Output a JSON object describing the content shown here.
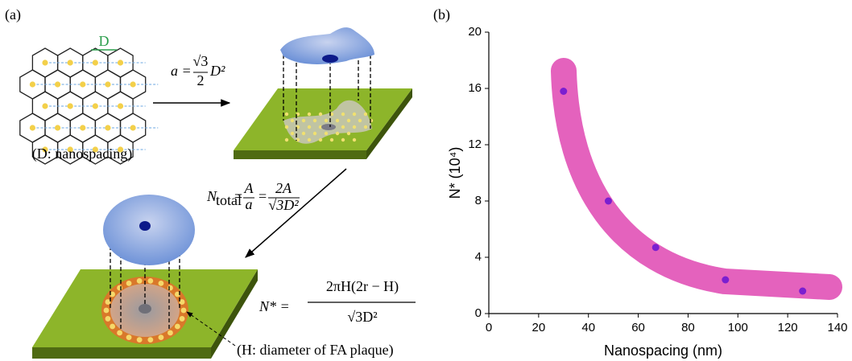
{
  "panel_a": {
    "label": "(a)",
    "spacing_label": "D",
    "spacing_caption": "(D: nanospacing)",
    "formula_area": {
      "lhs": "a =",
      "numerator": "√3",
      "denominator": "2",
      "factor": "D²"
    },
    "formula_total": {
      "lhs": "N",
      "lhs_sub": "total",
      "eq1": "=",
      "frac1_num": "A",
      "frac1_den": "a",
      "eq2": "=",
      "frac2_num": "2A",
      "frac2_den": "√3D²"
    },
    "formula_nstar": {
      "lhs": "N* =",
      "numerator": "2πH(2r − H)",
      "denominator": "√3D²"
    },
    "plaque_caption": "(H: diameter of FA plaque)"
  },
  "chart_data": {
    "type": "scatter",
    "panel_label": "(b)",
    "x_label": "Nanospacing (nm)",
    "y_label": "N* (10⁴)",
    "x": [
      30,
      48,
      67,
      95,
      126
    ],
    "values": [
      15.8,
      8,
      4.7,
      2.4,
      1.6
    ],
    "color": "#7a1fd0",
    "xlim": [
      0,
      140
    ],
    "ylim": [
      0,
      20
    ],
    "xticks": [
      0,
      20,
      40,
      60,
      80,
      100,
      120,
      140
    ],
    "yticks": [
      0,
      4,
      8,
      12,
      16,
      20
    ]
  }
}
